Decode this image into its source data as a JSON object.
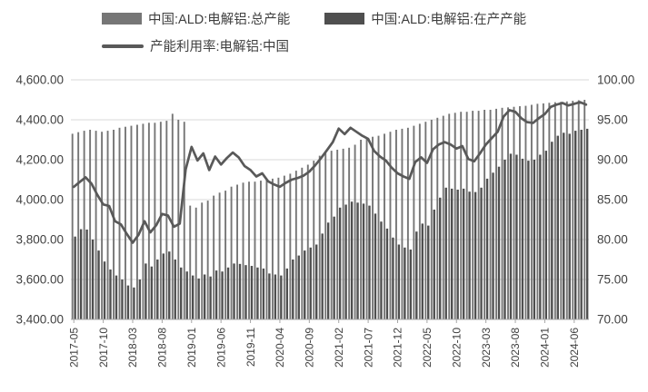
{
  "legend": {
    "total": "中国:ALD:电解铝:总产能",
    "active": "中国:ALD:电解铝:在产产能",
    "utilization": "产能利用率:电解铝:中国"
  },
  "colors": {
    "total_bar": "#767676",
    "active_bar": "#4f4f4f",
    "line": "#595959",
    "gridline": "#d9d9d9",
    "axis": "#a6a6a6",
    "text": "#3f3f3f"
  },
  "chart_data": {
    "type": "bar",
    "subtype": "clustered bars with overlaid line, dual y-axes",
    "x": [
      "2017-05",
      "2017-06",
      "2017-07",
      "2017-08",
      "2017-09",
      "2017-10",
      "2017-11",
      "2017-12",
      "2018-01",
      "2018-02",
      "2018-03",
      "2018-04",
      "2018-05",
      "2018-06",
      "2018-07",
      "2018-08",
      "2018-09",
      "2018-10",
      "2018-11",
      "2018-12",
      "2019-01",
      "2019-02",
      "2019-03",
      "2019-04",
      "2019-05",
      "2019-06",
      "2019-07",
      "2019-08",
      "2019-09",
      "2019-10",
      "2019-11",
      "2019-12",
      "2020-01",
      "2020-02",
      "2020-03",
      "2020-04",
      "2020-05",
      "2020-06",
      "2020-07",
      "2020-08",
      "2020-09",
      "2020-10",
      "2020-11",
      "2020-12",
      "2021-01",
      "2021-02",
      "2021-03",
      "2021-04",
      "2021-05",
      "2021-06",
      "2021-07",
      "2021-08",
      "2021-09",
      "2021-10",
      "2021-11",
      "2021-12",
      "2022-01",
      "2022-02",
      "2022-03",
      "2022-04",
      "2022-05",
      "2022-06",
      "2022-07",
      "2022-08",
      "2022-09",
      "2022-10",
      "2022-11",
      "2022-12",
      "2023-01",
      "2023-02",
      "2023-03",
      "2023-04",
      "2023-05",
      "2023-06",
      "2023-07",
      "2023-08",
      "2023-09",
      "2023-10",
      "2023-11",
      "2023-12",
      "2024-01",
      "2024-02",
      "2024-03",
      "2024-04",
      "2024-05",
      "2024-06",
      "2024-07",
      "2024-08"
    ],
    "series": [
      {
        "name": "中国:ALD:电解铝:总产能",
        "type": "bar",
        "axis": "left",
        "values": [
          4330,
          4338,
          4345,
          4350,
          4345,
          4340,
          4345,
          4350,
          4360,
          4365,
          4370,
          4375,
          4380,
          4385,
          4385,
          4390,
          4395,
          4430,
          4400,
          4390,
          3970,
          3960,
          3985,
          3995,
          4020,
          4035,
          4045,
          4065,
          4075,
          4085,
          4090,
          4090,
          4095,
          4100,
          4105,
          4110,
          4120,
          4130,
          4145,
          4160,
          4175,
          4195,
          4220,
          4240,
          4245,
          4250,
          4255,
          4260,
          4275,
          4300,
          4310,
          4315,
          4320,
          4330,
          4340,
          4350,
          4355,
          4360,
          4370,
          4380,
          4390,
          4400,
          4410,
          4420,
          4430,
          4435,
          4440,
          4440,
          4445,
          4445,
          4450,
          4450,
          4455,
          4460,
          4462,
          4465,
          4468,
          4470,
          4475,
          4480,
          4482,
          4485,
          4488,
          4490,
          4492,
          4495,
          4498,
          4500
        ]
      },
      {
        "name": "中国:ALD:电解铝:在产产能",
        "type": "bar",
        "axis": "left",
        "values": [
          3815,
          3852,
          3850,
          3800,
          3745,
          3690,
          3650,
          3620,
          3600,
          3570,
          3560,
          3600,
          3680,
          3665,
          3700,
          3730,
          3740,
          3700,
          3660,
          3640,
          3620,
          3605,
          3625,
          3615,
          3645,
          3640,
          3660,
          3680,
          3678,
          3672,
          3668,
          3660,
          3655,
          3630,
          3625,
          3620,
          3655,
          3700,
          3720,
          3745,
          3760,
          3775,
          3830,
          3885,
          3915,
          3960,
          3975,
          3990,
          3985,
          3980,
          3970,
          3930,
          3890,
          3855,
          3810,
          3775,
          3760,
          3750,
          3840,
          3880,
          3870,
          3950,
          4010,
          4060,
          4055,
          4050,
          4055,
          4040,
          4038,
          4060,
          4105,
          4135,
          4165,
          4200,
          4230,
          4225,
          4205,
          4195,
          4200,
          4225,
          4245,
          4290,
          4320,
          4335,
          4330,
          4345,
          4350,
          4355
        ]
      },
      {
        "name": "产能利用率:电解铝:中国",
        "type": "line",
        "axis": "right",
        "values": [
          86.6,
          87.2,
          87.8,
          87.0,
          85.6,
          84.4,
          84.2,
          82.3,
          81.9,
          80.7,
          79.6,
          80.6,
          82.3,
          80.9,
          81.8,
          83.2,
          83.0,
          81.6,
          82.0,
          88.8,
          91.6,
          89.9,
          90.8,
          88.7,
          90.4,
          89.4,
          90.2,
          90.9,
          90.3,
          89.2,
          88.7,
          87.9,
          88.3,
          87.3,
          86.9,
          86.6,
          87.1,
          87.5,
          87.7,
          88.0,
          88.5,
          89.3,
          90.2,
          91.2,
          92.2,
          93.9,
          93.2,
          94.0,
          93.5,
          93.0,
          92.6,
          91.1,
          90.4,
          89.9,
          89.0,
          88.3,
          87.9,
          87.6,
          89.7,
          90.3,
          89.6,
          91.3,
          91.9,
          92.2,
          91.9,
          91.4,
          91.7,
          90.1,
          89.8,
          90.8,
          91.9,
          92.7,
          93.5,
          95.4,
          96.2,
          96.0,
          95.2,
          94.7,
          94.6,
          95.2,
          95.7,
          96.6,
          96.9,
          97.1,
          96.8,
          97.0,
          97.2,
          96.9
        ]
      }
    ],
    "left_axis": {
      "min": 3400,
      "max": 4600,
      "step": 200,
      "tick_labels": [
        "3,400.00",
        "3,600.00",
        "3,800.00",
        "4,000.00",
        "4,200.00",
        "4,400.00",
        "4,600.00"
      ]
    },
    "right_axis": {
      "min": 70,
      "max": 100,
      "step": 5,
      "tick_labels": [
        "70.00",
        "75.00",
        "80.00",
        "85.00",
        "90.00",
        "95.00",
        "100.00"
      ]
    },
    "x_tick_labels": [
      "2017-05",
      "2017-10",
      "2018-03",
      "2018-08",
      "2019-01",
      "2019-06",
      "2019-11",
      "2020-04",
      "2020-09",
      "2021-02",
      "2021-07",
      "2021-12",
      "2022-05",
      "2022-10",
      "2023-03",
      "2023-08",
      "2024-01",
      "2024-06"
    ],
    "x_tick_every": 5,
    "grid": true,
    "legend_position": "top"
  }
}
